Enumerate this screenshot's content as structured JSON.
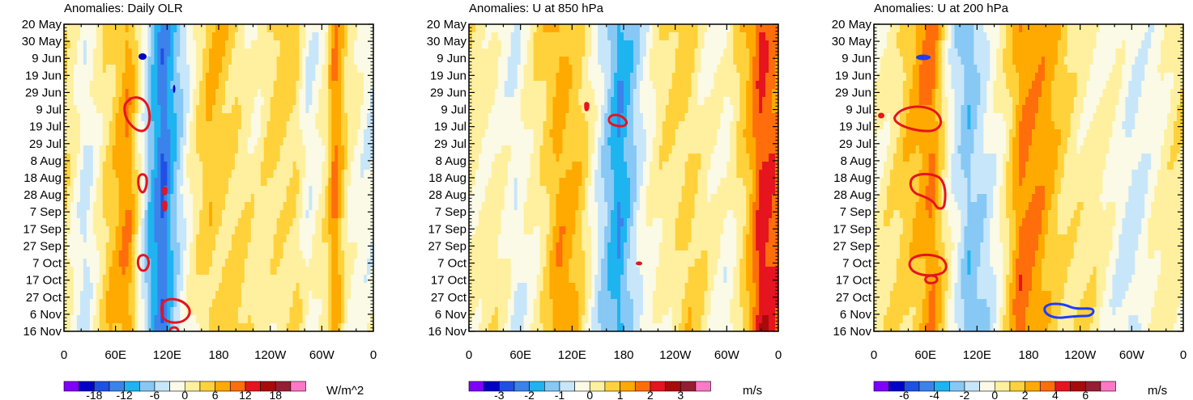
{
  "chart_data": [
    {
      "type": "heatmap",
      "title": "Anomalies: Daily OLR",
      "units": "W/m^2",
      "xtick_labels": [
        "0",
        "60E",
        "120E",
        "180",
        "120W",
        "60W",
        "0"
      ],
      "ytick_labels": [
        "20 May",
        "30 May",
        "9 Jun",
        "19 Jun",
        "29 Jun",
        "9 Jul",
        "19 Jul",
        "29 Jul",
        "8 Aug",
        "18 Aug",
        "28 Aug",
        "7 Sep",
        "17 Sep",
        "27 Sep",
        "7 Oct",
        "17 Oct",
        "27 Oct",
        "6 Nov",
        "16 Nov"
      ],
      "colorbar_labels": [
        "-18",
        "-12",
        "-6",
        "0",
        "6",
        "12",
        "18"
      ],
      "levels": [
        -21,
        -18,
        -15,
        -12,
        -9,
        -6,
        -3,
        0,
        3,
        6,
        9,
        12,
        15,
        18,
        21
      ],
      "bands": [
        {
          "lon": 0,
          "value": 2
        },
        {
          "lon": 25,
          "value": -3
        },
        {
          "lon": 45,
          "value": 3
        },
        {
          "lon": 75,
          "value": 8
        },
        {
          "lon": 100,
          "value": -8
        },
        {
          "lon": 115,
          "value": -14
        },
        {
          "lon": 130,
          "value": -7
        },
        {
          "lon": 150,
          "value": 0
        },
        {
          "lon": 170,
          "value": 5
        },
        {
          "lon": 200,
          "value": 4
        },
        {
          "lon": 225,
          "value": 0
        },
        {
          "lon": 250,
          "value": 3
        },
        {
          "lon": 270,
          "value": 4
        },
        {
          "lon": 285,
          "value": -2
        },
        {
          "lon": 305,
          "value": 1
        },
        {
          "lon": 315,
          "value": 9
        },
        {
          "lon": 330,
          "value": 1
        },
        {
          "lon": 360,
          "value": -2
        }
      ]
    },
    {
      "type": "heatmap",
      "title": "Anomalies: U at 850 hPa",
      "units": "m/s",
      "xtick_labels": [
        "0",
        "60E",
        "120E",
        "180",
        "120W",
        "60W",
        "0"
      ],
      "ytick_labels": [
        "20 May",
        "30 May",
        "9 Jun",
        "19 Jun",
        "29 Jun",
        "9 Jul",
        "19 Jul",
        "29 Jul",
        "8 Aug",
        "18 Aug",
        "28 Aug",
        "7 Sep",
        "17 Sep",
        "27 Sep",
        "7 Oct",
        "17 Oct",
        "27 Oct",
        "6 Nov",
        "16 Nov"
      ],
      "colorbar_labels": [
        "-3",
        "-2",
        "-1",
        "0",
        "1",
        "2",
        "3"
      ],
      "levels": [
        -3.5,
        -3,
        -2.5,
        -2,
        -1.5,
        -1,
        -0.5,
        0,
        0.5,
        1,
        1.5,
        2,
        2.5,
        3,
        3.5
      ],
      "bands": [
        {
          "lon": 0,
          "value": 0.3
        },
        {
          "lon": 30,
          "value": 0.2
        },
        {
          "lon": 55,
          "value": -0.6
        },
        {
          "lon": 80,
          "value": 0.3
        },
        {
          "lon": 105,
          "value": 1.4
        },
        {
          "lon": 130,
          "value": 0.6
        },
        {
          "lon": 155,
          "value": -0.8
        },
        {
          "lon": 175,
          "value": -1.8
        },
        {
          "lon": 200,
          "value": -0.6
        },
        {
          "lon": 225,
          "value": 0.2
        },
        {
          "lon": 255,
          "value": 0.8
        },
        {
          "lon": 280,
          "value": 0
        },
        {
          "lon": 300,
          "value": -0.3
        },
        {
          "lon": 320,
          "value": 0.8
        },
        {
          "lon": 340,
          "value": 2.3
        },
        {
          "lon": 360,
          "value": 1.6
        }
      ]
    },
    {
      "type": "heatmap",
      "title": "Anomalies: U at 200 hPa",
      "units": "m/s",
      "xtick_labels": [
        "0",
        "60E",
        "120E",
        "180",
        "120W",
        "60W",
        "0"
      ],
      "ytick_labels": [
        "20 May",
        "30 May",
        "9 Jun",
        "19 Jun",
        "29 Jun",
        "9 Jul",
        "19 Jul",
        "29 Jul",
        "8 Aug",
        "18 Aug",
        "28 Aug",
        "7 Sep",
        "17 Sep",
        "27 Sep",
        "7 Oct",
        "17 Oct",
        "27 Oct",
        "6 Nov",
        "16 Nov"
      ],
      "colorbar_labels": [
        "-6",
        "-4",
        "-2",
        "0",
        "2",
        "4",
        "6"
      ],
      "levels": [
        -7,
        -6,
        -5,
        -4,
        -3,
        -2,
        -1,
        0,
        1,
        2,
        3,
        4,
        5,
        6,
        7
      ],
      "bands": [
        {
          "lon": 0,
          "value": 0.3
        },
        {
          "lon": 25,
          "value": 0.6
        },
        {
          "lon": 50,
          "value": 2
        },
        {
          "lon": 68,
          "value": 3.5
        },
        {
          "lon": 90,
          "value": -0.5
        },
        {
          "lon": 110,
          "value": -3
        },
        {
          "lon": 130,
          "value": -1.5
        },
        {
          "lon": 150,
          "value": 0.5
        },
        {
          "lon": 170,
          "value": 3.2
        },
        {
          "lon": 200,
          "value": 2.2
        },
        {
          "lon": 225,
          "value": 1.2
        },
        {
          "lon": 250,
          "value": 0.5
        },
        {
          "lon": 275,
          "value": -0.4
        },
        {
          "lon": 300,
          "value": -1
        },
        {
          "lon": 320,
          "value": -0.3
        },
        {
          "lon": 345,
          "value": 0.2
        },
        {
          "lon": 360,
          "value": 0.5
        }
      ]
    }
  ],
  "palette": [
    "#8000ff",
    "#0000c8",
    "#1e50e6",
    "#3c82eb",
    "#1eb4f0",
    "#87c8f5",
    "#c8e6fa",
    "#fafae6",
    "#fff0a0",
    "#ffd23c",
    "#ffaa00",
    "#ff6e0a",
    "#e6141e",
    "#aa0a0a",
    "#961e32",
    "#ff78c8"
  ],
  "contour_colors": {
    "positive": "#e6141e",
    "negative": "#1e3cff"
  }
}
